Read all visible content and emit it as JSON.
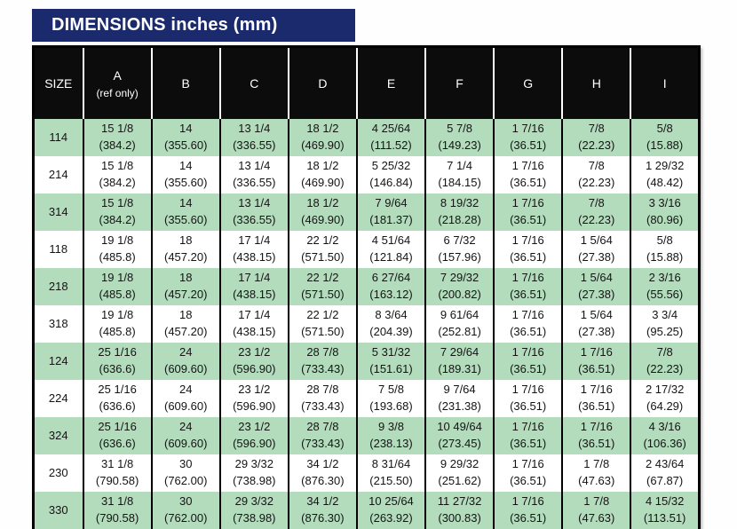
{
  "title": "DIMENSIONS inches (mm)",
  "colors": {
    "title_bg": "#1b2a6d",
    "header_bg": "#0c0c0c",
    "row_green": "#b2dcbc",
    "row_white": "#ffffff"
  },
  "table": {
    "columns": [
      {
        "label": "SIZE",
        "note": ""
      },
      {
        "label": "A",
        "note": "(ref only)"
      },
      {
        "label": "B",
        "note": ""
      },
      {
        "label": "C",
        "note": ""
      },
      {
        "label": "D",
        "note": ""
      },
      {
        "label": "E",
        "note": ""
      },
      {
        "label": "F",
        "note": ""
      },
      {
        "label": "G",
        "note": ""
      },
      {
        "label": "H",
        "note": ""
      },
      {
        "label": "I",
        "note": ""
      }
    ],
    "rows": [
      {
        "size": "114",
        "shaded": true,
        "cells": [
          [
            "15 1/8",
            "(384.2)"
          ],
          [
            "14",
            "(355.60)"
          ],
          [
            "13 1/4",
            "(336.55)"
          ],
          [
            "18 1/2",
            "(469.90)"
          ],
          [
            "4 25/64",
            "(111.52)"
          ],
          [
            "5 7/8",
            "(149.23)"
          ],
          [
            "1 7/16",
            "(36.51)"
          ],
          [
            "7/8",
            "(22.23)"
          ],
          [
            "5/8",
            "(15.88)"
          ]
        ]
      },
      {
        "size": "214",
        "shaded": false,
        "cells": [
          [
            "15 1/8",
            "(384.2)"
          ],
          [
            "14",
            "(355.60)"
          ],
          [
            "13 1/4",
            "(336.55)"
          ],
          [
            "18 1/2",
            "(469.90)"
          ],
          [
            "5 25/32",
            "(146.84)"
          ],
          [
            "7 1/4",
            "(184.15)"
          ],
          [
            "1 7/16",
            "(36.51)"
          ],
          [
            "7/8",
            "(22.23)"
          ],
          [
            "1 29/32",
            "(48.42)"
          ]
        ]
      },
      {
        "size": "314",
        "shaded": true,
        "cells": [
          [
            "15 1/8",
            "(384.2)"
          ],
          [
            "14",
            "(355.60)"
          ],
          [
            "13 1/4",
            "(336.55)"
          ],
          [
            "18 1/2",
            "(469.90)"
          ],
          [
            "7 9/64",
            "(181.37)"
          ],
          [
            "8 19/32",
            "(218.28)"
          ],
          [
            "1 7/16",
            "(36.51)"
          ],
          [
            "7/8",
            "(22.23)"
          ],
          [
            "3 3/16",
            "(80.96)"
          ]
        ]
      },
      {
        "size": "118",
        "shaded": false,
        "cells": [
          [
            "19 1/8",
            "(485.8)"
          ],
          [
            "18",
            "(457.20)"
          ],
          [
            "17 1/4",
            "(438.15)"
          ],
          [
            "22 1/2",
            "(571.50)"
          ],
          [
            "4 51/64",
            "(121.84)"
          ],
          [
            "6 7/32",
            "(157.96)"
          ],
          [
            "1 7/16",
            "(36.51)"
          ],
          [
            "1 5/64",
            "(27.38)"
          ],
          [
            "5/8",
            "(15.88)"
          ]
        ]
      },
      {
        "size": "218",
        "shaded": true,
        "cells": [
          [
            "19 1/8",
            "(485.8)"
          ],
          [
            "18",
            "(457.20)"
          ],
          [
            "17 1/4",
            "(438.15)"
          ],
          [
            "22 1/2",
            "(571.50)"
          ],
          [
            "6 27/64",
            "(163.12)"
          ],
          [
            "7 29/32",
            "(200.82)"
          ],
          [
            "1 7/16",
            "(36.51)"
          ],
          [
            "1 5/64",
            "(27.38)"
          ],
          [
            "2 3/16",
            "(55.56)"
          ]
        ]
      },
      {
        "size": "318",
        "shaded": false,
        "cells": [
          [
            "19 1/8",
            "(485.8)"
          ],
          [
            "18",
            "(457.20)"
          ],
          [
            "17 1/4",
            "(438.15)"
          ],
          [
            "22 1/2",
            "(571.50)"
          ],
          [
            "8 3/64",
            "(204.39)"
          ],
          [
            "9 61/64",
            "(252.81)"
          ],
          [
            "1 7/16",
            "(36.51)"
          ],
          [
            "1 5/64",
            "(27.38)"
          ],
          [
            "3 3/4",
            "(95.25)"
          ]
        ]
      },
      {
        "size": "124",
        "shaded": true,
        "cells": [
          [
            "25 1/16",
            "(636.6)"
          ],
          [
            "24",
            "(609.60)"
          ],
          [
            "23 1/2",
            "(596.90)"
          ],
          [
            "28 7/8",
            "(733.43)"
          ],
          [
            "5 31/32",
            "(151.61)"
          ],
          [
            "7 29/64",
            "(189.31)"
          ],
          [
            "1 7/16",
            "(36.51)"
          ],
          [
            "1 7/16",
            "(36.51)"
          ],
          [
            "7/8",
            "(22.23)"
          ]
        ]
      },
      {
        "size": "224",
        "shaded": false,
        "cells": [
          [
            "25 1/16",
            "(636.6)"
          ],
          [
            "24",
            "(609.60)"
          ],
          [
            "23 1/2",
            "(596.90)"
          ],
          [
            "28 7/8",
            "(733.43)"
          ],
          [
            "7 5/8",
            "(193.68)"
          ],
          [
            "9 7/64",
            "(231.38)"
          ],
          [
            "1 7/16",
            "(36.51)"
          ],
          [
            "1 7/16",
            "(36.51)"
          ],
          [
            "2 17/32",
            "(64.29)"
          ]
        ]
      },
      {
        "size": "324",
        "shaded": true,
        "cells": [
          [
            "25 1/16",
            "(636.6)"
          ],
          [
            "24",
            "(609.60)"
          ],
          [
            "23 1/2",
            "(596.90)"
          ],
          [
            "28 7/8",
            "(733.43)"
          ],
          [
            "9 3/8",
            "(238.13)"
          ],
          [
            "10 49/64",
            "(273.45)"
          ],
          [
            "1 7/16",
            "(36.51)"
          ],
          [
            "1 7/16",
            "(36.51)"
          ],
          [
            "4 3/16",
            "(106.36)"
          ]
        ]
      },
      {
        "size": "230",
        "shaded": false,
        "cells": [
          [
            "31 1/8",
            "(790.58)"
          ],
          [
            "30",
            "(762.00)"
          ],
          [
            "29 3/32",
            "(738.98)"
          ],
          [
            "34 1/2",
            "(876.30)"
          ],
          [
            "8 31/64",
            "(215.50)"
          ],
          [
            "9 29/32",
            "(251.62)"
          ],
          [
            "1 7/16",
            "(36.51)"
          ],
          [
            "1 7/8",
            "(47.63)"
          ],
          [
            "2 43/64",
            "(67.87)"
          ]
        ]
      },
      {
        "size": "330",
        "shaded": true,
        "cells": [
          [
            "31 1/8",
            "(790.58)"
          ],
          [
            "30",
            "(762.00)"
          ],
          [
            "29 3/32",
            "(738.98)"
          ],
          [
            "34 1/2",
            "(876.30)"
          ],
          [
            "10 25/64",
            "(263.92)"
          ],
          [
            "11 27/32",
            "(300.83)"
          ],
          [
            "1 7/16",
            "(36.51)"
          ],
          [
            "1 7/8",
            "(47.63)"
          ],
          [
            "4 15/32",
            "(113.51)"
          ]
        ]
      }
    ]
  }
}
